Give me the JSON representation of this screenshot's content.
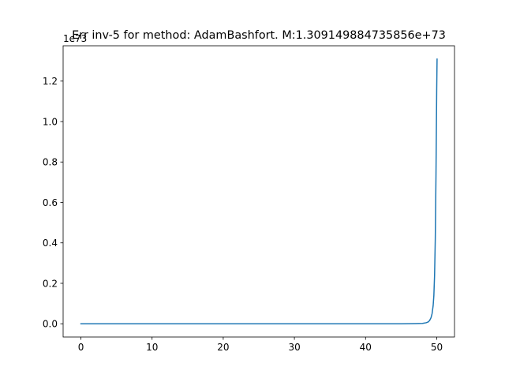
{
  "chart_data": {
    "type": "line",
    "title": "Err inv-5 for method: AdamBashfort. M:1.309149884735856e+73",
    "offset_text": "1e73",
    "xlabel": "",
    "ylabel": "",
    "xlim": [
      -2.5,
      52.5
    ],
    "ylim": [
      -0.0655,
      1.3747
    ],
    "y_multiplier": 1e+73,
    "x_ticks": [
      0,
      10,
      20,
      30,
      40,
      50
    ],
    "x_tick_labels": [
      "0",
      "10",
      "20",
      "30",
      "40",
      "50"
    ],
    "y_ticks": [
      0.0,
      0.2,
      0.4,
      0.6,
      0.8,
      1.0,
      1.2
    ],
    "y_tick_labels": [
      "0.0",
      "0.2",
      "0.4",
      "0.6",
      "0.8",
      "1.0",
      "1.2"
    ],
    "grid": false,
    "series": [
      {
        "color": "#1f77b4",
        "x": [
          0,
          5,
          10,
          15,
          20,
          25,
          30,
          35,
          40,
          45,
          47,
          48,
          48.5,
          48.8,
          49.0,
          49.2,
          49.35,
          49.5,
          49.6,
          49.7,
          49.8,
          49.9,
          50.0,
          50.05
        ],
        "y": [
          0,
          0,
          0,
          0,
          0,
          0,
          0,
          0,
          0,
          0,
          0.0008,
          0.002,
          0.005,
          0.009,
          0.016,
          0.03,
          0.05,
          0.09,
          0.14,
          0.24,
          0.42,
          0.74,
          1.16,
          1.309
        ]
      }
    ]
  }
}
